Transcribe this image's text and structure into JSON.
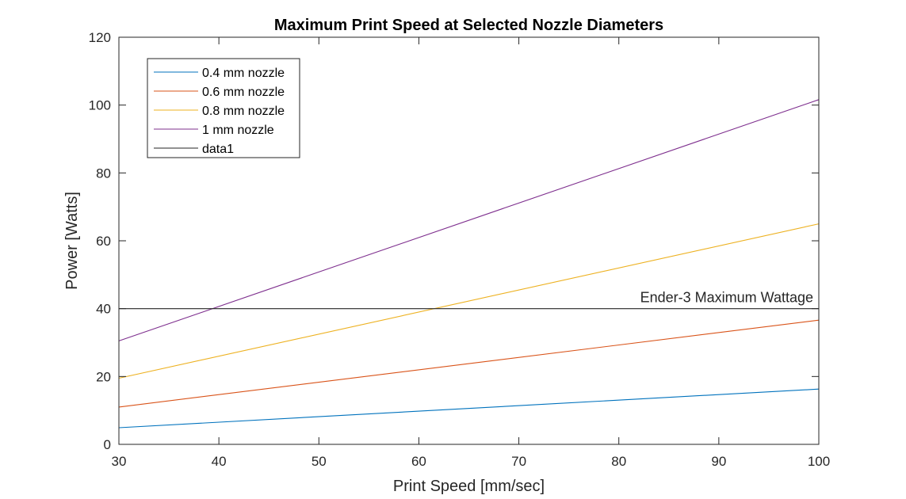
{
  "chart_data": {
    "type": "line",
    "title": "Maximum Print Speed at Selected Nozzle Diameters",
    "xlabel": "Print Speed [mm/sec]",
    "ylabel": "Power [Watts]",
    "xlim": [
      30,
      100
    ],
    "ylim": [
      0,
      120
    ],
    "xticks": [
      30,
      40,
      50,
      60,
      70,
      80,
      90,
      100
    ],
    "yticks": [
      0,
      20,
      40,
      60,
      80,
      100,
      120
    ],
    "grid": false,
    "legend_position": "top-left",
    "series": [
      {
        "name": "0.4 mm nozzle",
        "color": "#0072BD",
        "x": [
          30,
          100
        ],
        "y": [
          4.9,
          16.3
        ]
      },
      {
        "name": "0.6 mm nozzle",
        "color": "#D95319",
        "x": [
          30,
          100
        ],
        "y": [
          11.0,
          36.6
        ]
      },
      {
        "name": "0.8 mm nozzle",
        "color": "#EDB120",
        "x": [
          30,
          100
        ],
        "y": [
          19.5,
          65.0
        ]
      },
      {
        "name": "1 mm nozzle",
        "color": "#7E2F8E",
        "x": [
          30,
          100
        ],
        "y": [
          30.5,
          101.6
        ]
      },
      {
        "name": "data1",
        "color": "#262626",
        "x": [
          30,
          100
        ],
        "y": [
          40,
          40
        ]
      }
    ],
    "annotations": [
      {
        "text": "Ender-3 Maximum Wattage",
        "x": 100,
        "y": 40
      }
    ]
  }
}
